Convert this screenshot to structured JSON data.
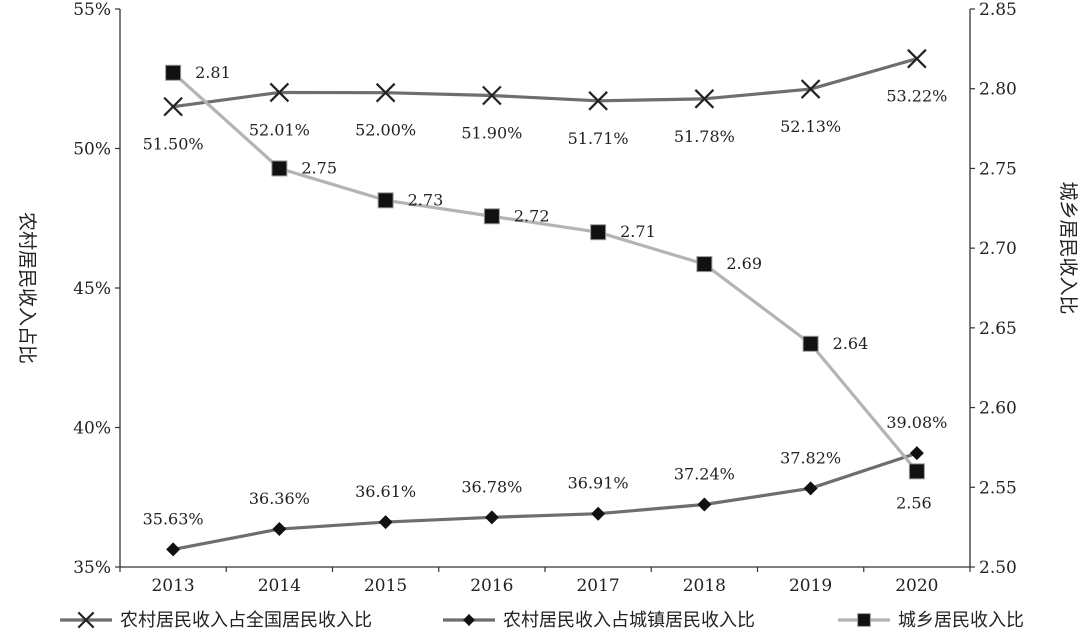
{
  "chart_data": {
    "type": "line",
    "x": [
      "2013",
      "2014",
      "2015",
      "2016",
      "2017",
      "2018",
      "2019",
      "2020"
    ],
    "left_axis": {
      "label": "农村居民收入占比",
      "range": [
        35,
        55
      ],
      "ticks": [
        35,
        40,
        45,
        50,
        55
      ],
      "tick_labels": [
        "35%",
        "40%",
        "45%",
        "50%",
        "55%"
      ]
    },
    "right_axis": {
      "label": "城乡居民收入比",
      "range": [
        2.5,
        2.85
      ],
      "ticks": [
        2.5,
        2.55,
        2.6,
        2.65,
        2.7,
        2.75,
        2.8,
        2.85
      ],
      "tick_labels": [
        "2.50",
        "2.55",
        "2.60",
        "2.65",
        "2.70",
        "2.75",
        "2.80",
        "2.85"
      ]
    },
    "series": [
      {
        "name": "农村居民收入占全国居民收入比",
        "axis": "left",
        "marker": "x",
        "color": "#6e6e6e",
        "values": [
          51.5,
          52.01,
          52.0,
          51.9,
          51.71,
          51.78,
          52.13,
          53.22
        ],
        "labels": [
          "51.50%",
          "52.01%",
          "52.00%",
          "51.90%",
          "51.71%",
          "51.78%",
          "52.13%",
          "53.22%"
        ]
      },
      {
        "name": "农村居民收入占城镇居民收入比",
        "axis": "left",
        "marker": "diamond",
        "color": "#6e6e6e",
        "values": [
          35.63,
          36.36,
          36.61,
          36.78,
          36.91,
          37.24,
          37.82,
          39.08
        ],
        "labels": [
          "35.63%",
          "36.36%",
          "36.61%",
          "36.78%",
          "36.91%",
          "37.24%",
          "37.82%",
          "39.08%"
        ]
      },
      {
        "name": "城乡居民收入比",
        "axis": "right",
        "marker": "square",
        "color": "#b4b4b4",
        "values": [
          2.81,
          2.75,
          2.73,
          2.72,
          2.71,
          2.69,
          2.64,
          2.56
        ],
        "labels": [
          "2.81",
          "2.75",
          "2.73",
          "2.72",
          "2.71",
          "2.69",
          "2.64",
          "2.56"
        ]
      }
    ],
    "legend_position": "bottom",
    "grid": false
  }
}
